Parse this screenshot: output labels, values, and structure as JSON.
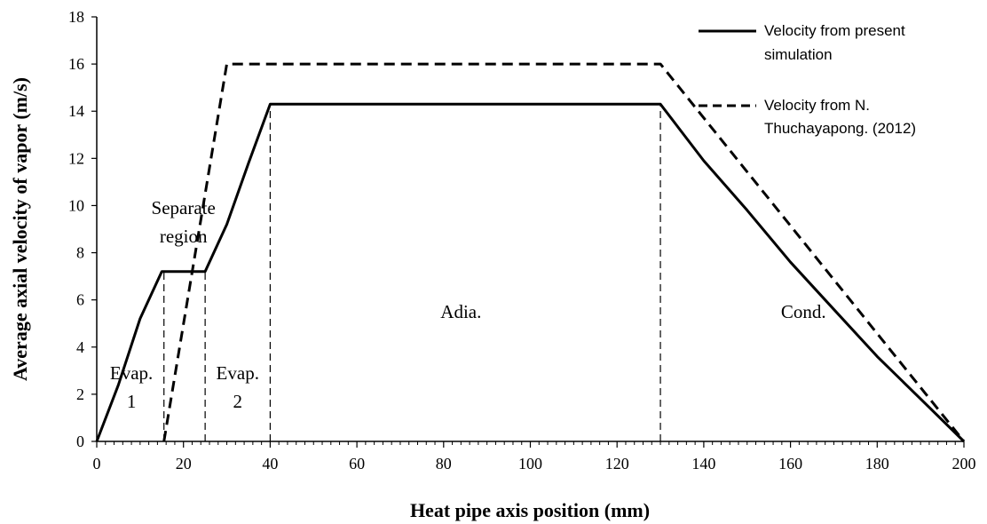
{
  "chart_data": {
    "type": "line",
    "xlabel": "Heat pipe axis position (mm)",
    "ylabel": "Average axial velocity of vapor (m/s)",
    "xlim": [
      0,
      200
    ],
    "ylim": [
      0,
      18
    ],
    "xticks": [
      0,
      20,
      40,
      60,
      80,
      100,
      120,
      140,
      160,
      180,
      200
    ],
    "yticks": [
      0,
      2,
      4,
      6,
      8,
      10,
      12,
      14,
      16,
      18
    ],
    "x_minor_step": 2,
    "grid": false,
    "legend_position": "top-right",
    "series": [
      {
        "name": "Velocity from present simulation",
        "style": "solid",
        "color": "#000000",
        "points": [
          [
            0,
            0
          ],
          [
            5,
            2.4
          ],
          [
            10,
            5.2
          ],
          [
            15,
            7.2
          ],
          [
            25,
            7.2
          ],
          [
            30,
            9.2
          ],
          [
            35,
            11.8
          ],
          [
            40,
            14.3
          ],
          [
            130,
            14.3
          ],
          [
            140,
            11.9
          ],
          [
            150,
            9.8
          ],
          [
            160,
            7.6
          ],
          [
            170,
            5.6
          ],
          [
            180,
            3.6
          ],
          [
            190,
            1.8
          ],
          [
            200,
            0
          ]
        ]
      },
      {
        "name": "Velocity from N. Thuchayapong. (2012)",
        "style": "dashed",
        "color": "#000000",
        "points": [
          [
            15.5,
            0
          ],
          [
            30,
            16
          ],
          [
            130,
            16
          ],
          [
            200,
            0
          ]
        ]
      }
    ],
    "legend_lines": [
      [
        "Velocity from present",
        "simulation"
      ],
      [
        "Velocity from N.",
        "Thuchayapong. (2012)"
      ]
    ],
    "boundaries": [
      15.5,
      25,
      40,
      130
    ],
    "region_labels": [
      {
        "lines": [
          "Evap.",
          "1"
        ],
        "x": 8,
        "y": [
          2.9,
          1.7
        ]
      },
      {
        "lines": [
          "Separate",
          "region"
        ],
        "x": 20,
        "y": [
          9.9,
          8.7
        ]
      },
      {
        "lines": [
          "Evap.",
          "2"
        ],
        "x": 32.5,
        "y": [
          2.9,
          1.7
        ]
      },
      {
        "lines": [
          "Adia."
        ],
        "x": 84,
        "y": [
          5.5
        ]
      },
      {
        "lines": [
          "Cond."
        ],
        "x": 163,
        "y": [
          5.5
        ]
      }
    ]
  }
}
